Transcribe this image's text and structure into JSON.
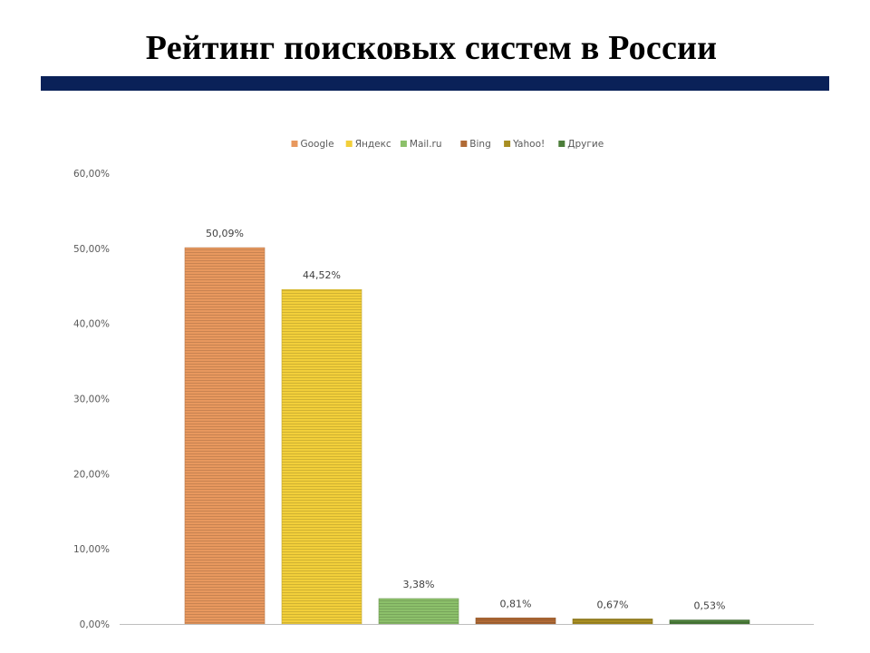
{
  "slide": {
    "title": "Рейтинг поисковых систем в России"
  },
  "colors": {
    "title_rule": "#0a2158"
  },
  "chart_data": {
    "type": "bar",
    "title": "",
    "xlabel": "",
    "ylabel": "",
    "ylim": [
      0,
      60
    ],
    "yticks": [
      0,
      10,
      20,
      30,
      40,
      50,
      60
    ],
    "ytick_labels": [
      "0,00%",
      "10,00%",
      "20,00%",
      "30,00%",
      "40,00%",
      "50,00%",
      "60,00%"
    ],
    "grid": false,
    "legend_position": "top",
    "series": [
      {
        "name": "Google",
        "value": 50.09,
        "label": "50,09%",
        "color": "#e8985e"
      },
      {
        "name": "Яндекс",
        "value": 44.52,
        "label": "44,52%",
        "color": "#f2cf3a"
      },
      {
        "name": "Mail.ru",
        "value": 3.38,
        "label": "3,38%",
        "color": "#8cc06a"
      },
      {
        "name": "Bing",
        "value": 0.81,
        "label": "0,81%",
        "color": "#b06a35"
      },
      {
        "name": "Yahoo!",
        "value": 0.67,
        "label": "0,67%",
        "color": "#a88e23"
      },
      {
        "name": "Другие",
        "value": 0.53,
        "label": "0,53%",
        "color": "#4c7e3a"
      }
    ]
  }
}
